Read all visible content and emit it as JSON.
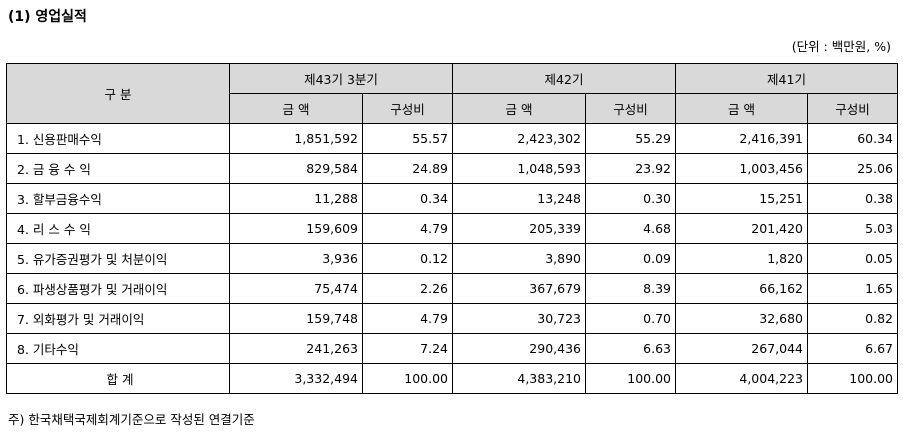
{
  "title": "(1) 영업실적",
  "unit": "(단위 : 백만원, %)",
  "header": {
    "category": "구 분",
    "periods": [
      "제43기 3분기",
      "제42기",
      "제41기"
    ],
    "amount": "금 액",
    "ratio": "구성비"
  },
  "rows": [
    {
      "label": "1. 신용판매수익",
      "v": [
        "1,851,592",
        "55.57",
        "2,423,302",
        "55.29",
        "2,416,391",
        "60.34"
      ]
    },
    {
      "label": "2. 금 융 수 익",
      "v": [
        "829,584",
        "24.89",
        "1,048,593",
        "23.92",
        "1,003,456",
        "25.06"
      ]
    },
    {
      "label": "3. 할부금융수익",
      "v": [
        "11,288",
        "0.34",
        "13,248",
        "0.30",
        "15,251",
        "0.38"
      ]
    },
    {
      "label": "4. 리 스 수 익",
      "v": [
        "159,609",
        "4.79",
        "205,339",
        "4.68",
        "201,420",
        "5.03"
      ]
    },
    {
      "label": "5. 유가증권평가 및 처분이익",
      "v": [
        "3,936",
        "0.12",
        "3,890",
        "0.09",
        "1,820",
        "0.05"
      ]
    },
    {
      "label": "6. 파생상품평가 및 거래이익",
      "v": [
        "75,474",
        "2.26",
        "367,679",
        "8.39",
        "66,162",
        "1.65"
      ]
    },
    {
      "label": "7. 외화평가 및 거래이익",
      "v": [
        "159,748",
        "4.79",
        "30,723",
        "0.70",
        "32,680",
        "0.82"
      ]
    },
    {
      "label": "8. 기타수익",
      "v": [
        "241,263",
        "7.24",
        "290,436",
        "6.63",
        "267,044",
        "6.67"
      ]
    }
  ],
  "total": {
    "label": "합 계",
    "v": [
      "3,332,494",
      "100.00",
      "4,383,210",
      "100.00",
      "4,004,223",
      "100.00"
    ]
  },
  "note": "주) 한국채택국제회계기준으로 작성된 연결기준"
}
